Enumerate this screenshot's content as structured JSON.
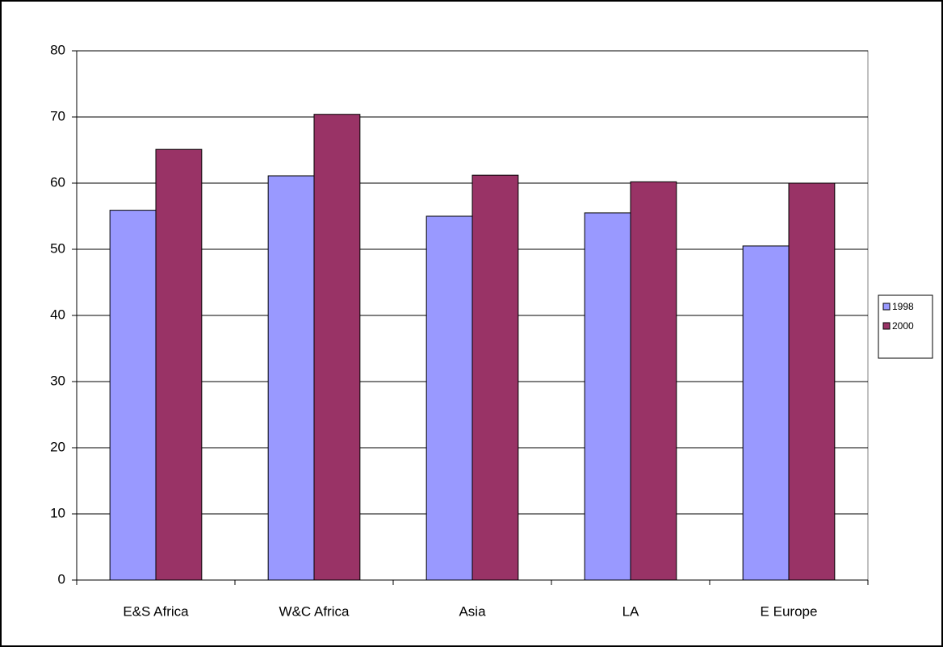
{
  "chart_data": {
    "type": "bar",
    "categories": [
      "E&S Africa",
      "W&C Africa",
      "Asia",
      "LA",
      "E Europe"
    ],
    "series": [
      {
        "name": "1998",
        "color": "#9999ff",
        "values": [
          55.9,
          61.1,
          55,
          55.5,
          50.5
        ]
      },
      {
        "name": "2000",
        "color": "#993366",
        "values": [
          65.1,
          70.4,
          61.2,
          60.2,
          60
        ]
      }
    ],
    "ylim": [
      0,
      80
    ],
    "yticks": [
      0,
      10,
      20,
      30,
      40,
      50,
      60,
      70,
      80
    ],
    "grid": true,
    "legend": "right"
  }
}
